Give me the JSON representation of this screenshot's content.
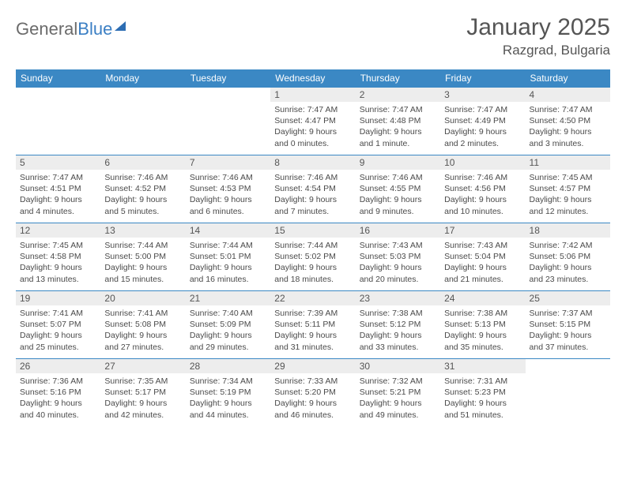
{
  "brand": {
    "word1": "General",
    "word2": "Blue"
  },
  "title": "January 2025",
  "location": "Razgrad, Bulgaria",
  "colors": {
    "header_bg": "#3b88c4",
    "header_text": "#ffffff",
    "daynum_bg": "#ededed",
    "rule": "#3b88c4",
    "text": "#4a4a4a"
  },
  "day_headers": [
    "Sunday",
    "Monday",
    "Tuesday",
    "Wednesday",
    "Thursday",
    "Friday",
    "Saturday"
  ],
  "weeks": [
    [
      {
        "n": "",
        "empty": true,
        "l1": "",
        "l2": "",
        "l3": "",
        "l4": ""
      },
      {
        "n": "",
        "empty": true,
        "l1": "",
        "l2": "",
        "l3": "",
        "l4": ""
      },
      {
        "n": "",
        "empty": true,
        "l1": "",
        "l2": "",
        "l3": "",
        "l4": ""
      },
      {
        "n": "1",
        "l1": "Sunrise: 7:47 AM",
        "l2": "Sunset: 4:47 PM",
        "l3": "Daylight: 9 hours",
        "l4": "and 0 minutes."
      },
      {
        "n": "2",
        "l1": "Sunrise: 7:47 AM",
        "l2": "Sunset: 4:48 PM",
        "l3": "Daylight: 9 hours",
        "l4": "and 1 minute."
      },
      {
        "n": "3",
        "l1": "Sunrise: 7:47 AM",
        "l2": "Sunset: 4:49 PM",
        "l3": "Daylight: 9 hours",
        "l4": "and 2 minutes."
      },
      {
        "n": "4",
        "l1": "Sunrise: 7:47 AM",
        "l2": "Sunset: 4:50 PM",
        "l3": "Daylight: 9 hours",
        "l4": "and 3 minutes."
      }
    ],
    [
      {
        "n": "5",
        "l1": "Sunrise: 7:47 AM",
        "l2": "Sunset: 4:51 PM",
        "l3": "Daylight: 9 hours",
        "l4": "and 4 minutes."
      },
      {
        "n": "6",
        "l1": "Sunrise: 7:46 AM",
        "l2": "Sunset: 4:52 PM",
        "l3": "Daylight: 9 hours",
        "l4": "and 5 minutes."
      },
      {
        "n": "7",
        "l1": "Sunrise: 7:46 AM",
        "l2": "Sunset: 4:53 PM",
        "l3": "Daylight: 9 hours",
        "l4": "and 6 minutes."
      },
      {
        "n": "8",
        "l1": "Sunrise: 7:46 AM",
        "l2": "Sunset: 4:54 PM",
        "l3": "Daylight: 9 hours",
        "l4": "and 7 minutes."
      },
      {
        "n": "9",
        "l1": "Sunrise: 7:46 AM",
        "l2": "Sunset: 4:55 PM",
        "l3": "Daylight: 9 hours",
        "l4": "and 9 minutes."
      },
      {
        "n": "10",
        "l1": "Sunrise: 7:46 AM",
        "l2": "Sunset: 4:56 PM",
        "l3": "Daylight: 9 hours",
        "l4": "and 10 minutes."
      },
      {
        "n": "11",
        "l1": "Sunrise: 7:45 AM",
        "l2": "Sunset: 4:57 PM",
        "l3": "Daylight: 9 hours",
        "l4": "and 12 minutes."
      }
    ],
    [
      {
        "n": "12",
        "l1": "Sunrise: 7:45 AM",
        "l2": "Sunset: 4:58 PM",
        "l3": "Daylight: 9 hours",
        "l4": "and 13 minutes."
      },
      {
        "n": "13",
        "l1": "Sunrise: 7:44 AM",
        "l2": "Sunset: 5:00 PM",
        "l3": "Daylight: 9 hours",
        "l4": "and 15 minutes."
      },
      {
        "n": "14",
        "l1": "Sunrise: 7:44 AM",
        "l2": "Sunset: 5:01 PM",
        "l3": "Daylight: 9 hours",
        "l4": "and 16 minutes."
      },
      {
        "n": "15",
        "l1": "Sunrise: 7:44 AM",
        "l2": "Sunset: 5:02 PM",
        "l3": "Daylight: 9 hours",
        "l4": "and 18 minutes."
      },
      {
        "n": "16",
        "l1": "Sunrise: 7:43 AM",
        "l2": "Sunset: 5:03 PM",
        "l3": "Daylight: 9 hours",
        "l4": "and 20 minutes."
      },
      {
        "n": "17",
        "l1": "Sunrise: 7:43 AM",
        "l2": "Sunset: 5:04 PM",
        "l3": "Daylight: 9 hours",
        "l4": "and 21 minutes."
      },
      {
        "n": "18",
        "l1": "Sunrise: 7:42 AM",
        "l2": "Sunset: 5:06 PM",
        "l3": "Daylight: 9 hours",
        "l4": "and 23 minutes."
      }
    ],
    [
      {
        "n": "19",
        "l1": "Sunrise: 7:41 AM",
        "l2": "Sunset: 5:07 PM",
        "l3": "Daylight: 9 hours",
        "l4": "and 25 minutes."
      },
      {
        "n": "20",
        "l1": "Sunrise: 7:41 AM",
        "l2": "Sunset: 5:08 PM",
        "l3": "Daylight: 9 hours",
        "l4": "and 27 minutes."
      },
      {
        "n": "21",
        "l1": "Sunrise: 7:40 AM",
        "l2": "Sunset: 5:09 PM",
        "l3": "Daylight: 9 hours",
        "l4": "and 29 minutes."
      },
      {
        "n": "22",
        "l1": "Sunrise: 7:39 AM",
        "l2": "Sunset: 5:11 PM",
        "l3": "Daylight: 9 hours",
        "l4": "and 31 minutes."
      },
      {
        "n": "23",
        "l1": "Sunrise: 7:38 AM",
        "l2": "Sunset: 5:12 PM",
        "l3": "Daylight: 9 hours",
        "l4": "and 33 minutes."
      },
      {
        "n": "24",
        "l1": "Sunrise: 7:38 AM",
        "l2": "Sunset: 5:13 PM",
        "l3": "Daylight: 9 hours",
        "l4": "and 35 minutes."
      },
      {
        "n": "25",
        "l1": "Sunrise: 7:37 AM",
        "l2": "Sunset: 5:15 PM",
        "l3": "Daylight: 9 hours",
        "l4": "and 37 minutes."
      }
    ],
    [
      {
        "n": "26",
        "l1": "Sunrise: 7:36 AM",
        "l2": "Sunset: 5:16 PM",
        "l3": "Daylight: 9 hours",
        "l4": "and 40 minutes."
      },
      {
        "n": "27",
        "l1": "Sunrise: 7:35 AM",
        "l2": "Sunset: 5:17 PM",
        "l3": "Daylight: 9 hours",
        "l4": "and 42 minutes."
      },
      {
        "n": "28",
        "l1": "Sunrise: 7:34 AM",
        "l2": "Sunset: 5:19 PM",
        "l3": "Daylight: 9 hours",
        "l4": "and 44 minutes."
      },
      {
        "n": "29",
        "l1": "Sunrise: 7:33 AM",
        "l2": "Sunset: 5:20 PM",
        "l3": "Daylight: 9 hours",
        "l4": "and 46 minutes."
      },
      {
        "n": "30",
        "l1": "Sunrise: 7:32 AM",
        "l2": "Sunset: 5:21 PM",
        "l3": "Daylight: 9 hours",
        "l4": "and 49 minutes."
      },
      {
        "n": "31",
        "l1": "Sunrise: 7:31 AM",
        "l2": "Sunset: 5:23 PM",
        "l3": "Daylight: 9 hours",
        "l4": "and 51 minutes."
      },
      {
        "n": "",
        "empty": true,
        "l1": "",
        "l2": "",
        "l3": "",
        "l4": ""
      }
    ]
  ]
}
